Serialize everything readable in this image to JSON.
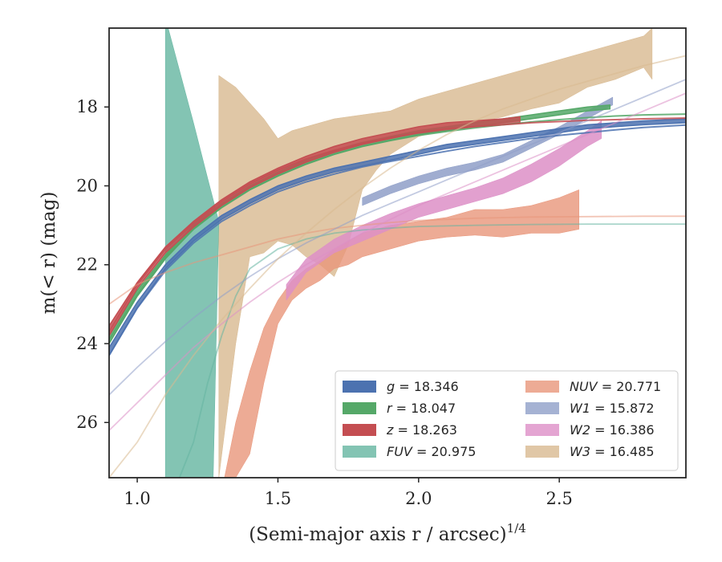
{
  "chart_data": {
    "type": "line",
    "xlabel": "(Semi-major axis r / arcsec)",
    "xlabel_sup": "1/4",
    "ylabel": "m(< r) (mag)",
    "xlim": [
      0.9,
      2.95
    ],
    "ylim": [
      27.4,
      16.0
    ],
    "y_inverted": true,
    "x_ticks": [
      1.0,
      1.5,
      2.0,
      2.5
    ],
    "x_tick_labels": [
      "1.0",
      "1.5",
      "2.0",
      "2.5"
    ],
    "y_ticks": [
      18,
      20,
      22,
      24,
      26
    ],
    "y_tick_labels": [
      "18",
      "20",
      "22",
      "24",
      "26"
    ],
    "grid": false,
    "legend_position": "lower-right",
    "legend_columns": 2,
    "series": [
      {
        "name": "g = 18.346",
        "color": "#4c72b0",
        "profile_x": [
          0.9,
          1.0,
          1.1,
          1.2,
          1.3,
          1.4,
          1.5,
          1.6,
          1.7,
          1.8,
          1.9,
          2.0,
          2.1,
          2.2,
          2.3,
          2.4,
          2.5,
          2.6,
          2.7,
          2.8,
          2.95
        ],
        "profile_lo": [
          24.3,
          23.1,
          22.1,
          21.4,
          20.85,
          20.45,
          20.1,
          19.85,
          19.65,
          19.5,
          19.35,
          19.2,
          19.05,
          18.95,
          18.85,
          18.75,
          18.65,
          18.55,
          18.5,
          18.45,
          18.4
        ],
        "profile_hi": [
          24.1,
          22.95,
          22.0,
          21.3,
          20.75,
          20.35,
          20.0,
          19.75,
          19.55,
          19.4,
          19.25,
          19.1,
          18.95,
          18.85,
          18.75,
          18.65,
          18.55,
          18.45,
          18.4,
          18.35,
          18.3
        ],
        "model_x": [
          0.9,
          1.0,
          1.1,
          1.2,
          1.3,
          1.4,
          1.5,
          1.6,
          1.7,
          1.8,
          1.9,
          2.0,
          2.1,
          2.2,
          2.3,
          2.4,
          2.5,
          2.6,
          2.7,
          2.8,
          2.95
        ],
        "model_y": [
          24.3,
          23.1,
          22.15,
          21.45,
          20.9,
          20.5,
          20.15,
          19.9,
          19.7,
          19.52,
          19.38,
          19.25,
          19.12,
          19.0,
          18.9,
          18.8,
          18.72,
          18.65,
          18.58,
          18.52,
          18.46
        ]
      },
      {
        "name": "r = 18.047",
        "color": "#55a868",
        "profile_x": [
          0.9,
          1.0,
          1.1,
          1.2,
          1.3,
          1.4,
          1.5,
          1.6,
          1.7,
          1.8,
          1.9,
          2.0,
          2.1,
          2.2,
          2.3,
          2.4,
          2.5,
          2.6,
          2.68
        ],
        "profile_lo": [
          24.0,
          22.8,
          21.85,
          21.1,
          20.55,
          20.1,
          19.75,
          19.45,
          19.2,
          19.0,
          18.85,
          18.7,
          18.6,
          18.5,
          18.4,
          18.3,
          18.2,
          18.1,
          18.05
        ],
        "profile_hi": [
          23.8,
          22.65,
          21.75,
          21.0,
          20.45,
          20.0,
          19.65,
          19.35,
          19.1,
          18.9,
          18.75,
          18.6,
          18.5,
          18.4,
          18.3,
          18.2,
          18.1,
          18.0,
          17.95
        ],
        "model_x": [
          0.9,
          1.0,
          1.1,
          1.2,
          1.3,
          1.4,
          1.5,
          1.6,
          1.7,
          1.8,
          1.9,
          2.0,
          2.1,
          2.2,
          2.3,
          2.4,
          2.5,
          2.6,
          2.7,
          2.8,
          2.95
        ],
        "model_y": [
          23.9,
          22.75,
          21.8,
          21.1,
          20.55,
          20.1,
          19.75,
          19.45,
          19.2,
          19.0,
          18.85,
          18.72,
          18.62,
          18.53,
          18.45,
          18.38,
          18.32,
          18.27,
          18.23,
          18.2,
          18.18
        ]
      },
      {
        "name": "z = 18.263",
        "color": "#c44e52",
        "profile_x": [
          0.9,
          1.0,
          1.1,
          1.2,
          1.3,
          1.4,
          1.5,
          1.6,
          1.7,
          1.8,
          1.9,
          2.0,
          2.1,
          2.2,
          2.3,
          2.36
        ],
        "profile_lo": [
          23.8,
          22.6,
          21.7,
          21.05,
          20.5,
          20.05,
          19.7,
          19.4,
          19.15,
          18.95,
          18.8,
          18.65,
          18.55,
          18.5,
          18.45,
          18.4
        ],
        "profile_hi": [
          23.55,
          22.45,
          21.55,
          20.9,
          20.35,
          19.9,
          19.55,
          19.25,
          19.0,
          18.8,
          18.65,
          18.5,
          18.4,
          18.35,
          18.3,
          18.25
        ],
        "model_x": [
          0.9,
          1.0,
          1.1,
          1.2,
          1.3,
          1.4,
          1.5,
          1.6,
          1.7,
          1.8,
          1.9,
          2.0,
          2.1,
          2.2,
          2.3,
          2.4,
          2.5,
          2.6,
          2.7,
          2.8,
          2.95
        ],
        "model_y": [
          23.7,
          22.5,
          21.6,
          20.95,
          20.4,
          19.95,
          19.6,
          19.32,
          19.1,
          18.92,
          18.78,
          18.66,
          18.57,
          18.5,
          18.45,
          18.4,
          18.37,
          18.34,
          18.32,
          18.3,
          18.28
        ]
      },
      {
        "name": "FUV = 20.975",
        "color": "#64b5a0",
        "profile_x": [
          1.1,
          1.11,
          1.2,
          1.25,
          1.29,
          1.27,
          1.23,
          1.1
        ],
        "profile_lo": [
          16.0,
          16.0,
          18.4,
          19.8,
          20.9,
          27.4,
          27.4,
          27.4
        ],
        "profile_hi": null,
        "polygon": true,
        "model_x": [
          1.15,
          1.2,
          1.25,
          1.3,
          1.35,
          1.4,
          1.5,
          1.6,
          1.7,
          1.8,
          1.9,
          2.0,
          2.2,
          2.4,
          2.6,
          2.8,
          2.95
        ],
        "model_y": [
          27.4,
          26.5,
          25.0,
          23.8,
          22.8,
          22.1,
          21.6,
          21.35,
          21.2,
          21.12,
          21.07,
          21.03,
          21.0,
          20.98,
          20.97,
          20.97,
          20.97
        ]
      },
      {
        "name": "NUV = 20.771",
        "color": "#e8967a",
        "profile_x": [
          1.31,
          1.35,
          1.4,
          1.45,
          1.5,
          1.55,
          1.6,
          1.65,
          1.7,
          1.75,
          1.8,
          1.9,
          2.0,
          2.1,
          2.2,
          2.3,
          2.4,
          2.5,
          2.57
        ],
        "profile_lo": [
          27.4,
          27.4,
          26.8,
          25.0,
          23.5,
          22.9,
          22.6,
          22.4,
          22.1,
          22.0,
          21.8,
          21.6,
          21.4,
          21.3,
          21.25,
          21.3,
          21.2,
          21.2,
          21.1
        ],
        "profile_hi": [
          27.4,
          26.0,
          24.7,
          23.6,
          22.9,
          22.4,
          22.1,
          21.9,
          21.6,
          21.4,
          21.2,
          21.0,
          20.9,
          20.8,
          20.6,
          20.6,
          20.5,
          20.3,
          20.1
        ],
        "model_x": [
          0.9,
          1.0,
          1.1,
          1.2,
          1.3,
          1.4,
          1.5,
          1.6,
          1.7,
          1.8,
          1.9,
          2.0,
          2.2,
          2.4,
          2.6,
          2.8,
          2.95
        ],
        "model_y": [
          23.0,
          22.5,
          22.2,
          21.95,
          21.75,
          21.55,
          21.35,
          21.2,
          21.08,
          21.0,
          20.93,
          20.88,
          20.82,
          20.79,
          20.78,
          20.77,
          20.77
        ]
      },
      {
        "name": "W1 = 15.872",
        "color": "#8f9fc8",
        "profile_x": [
          1.8,
          1.9,
          2.0,
          2.1,
          2.2,
          2.3,
          2.4,
          2.5,
          2.6,
          2.69
        ],
        "profile_lo": [
          20.5,
          20.2,
          19.95,
          19.75,
          19.6,
          19.4,
          19.05,
          18.7,
          18.3,
          17.95
        ],
        "profile_hi": [
          20.3,
          20.0,
          19.75,
          19.55,
          19.4,
          19.2,
          18.85,
          18.5,
          18.1,
          17.75
        ],
        "model_x": [
          0.9,
          1.0,
          1.1,
          1.2,
          1.3,
          1.4,
          1.5,
          1.6,
          1.7,
          1.8,
          1.9,
          2.0,
          2.1,
          2.2,
          2.3,
          2.4,
          2.5,
          2.6,
          2.7,
          2.8,
          2.95
        ],
        "model_y": [
          25.3,
          24.6,
          23.95,
          23.35,
          22.8,
          22.3,
          21.85,
          21.45,
          21.1,
          20.75,
          20.45,
          20.15,
          19.85,
          19.55,
          19.25,
          18.95,
          18.65,
          18.35,
          18.05,
          17.75,
          17.3
        ]
      },
      {
        "name": "W2 = 16.386",
        "color": "#dd8fc7",
        "profile_x": [
          1.53,
          1.6,
          1.7,
          1.8,
          1.9,
          2.0,
          2.1,
          2.2,
          2.3,
          2.4,
          2.5,
          2.6,
          2.65
        ],
        "profile_lo": [
          22.9,
          22.2,
          21.7,
          21.4,
          21.1,
          20.8,
          20.6,
          20.4,
          20.2,
          19.9,
          19.5,
          19.0,
          18.8
        ],
        "profile_hi": [
          22.5,
          21.85,
          21.35,
          21.0,
          20.7,
          20.45,
          20.25,
          20.05,
          19.8,
          19.45,
          19.05,
          18.6,
          18.35
        ],
        "model_x": [
          0.9,
          1.0,
          1.1,
          1.2,
          1.3,
          1.4,
          1.5,
          1.6,
          1.7,
          1.8,
          1.9,
          2.0,
          2.1,
          2.2,
          2.3,
          2.4,
          2.5,
          2.6,
          2.7,
          2.8,
          2.95
        ],
        "model_y": [
          26.2,
          25.5,
          24.8,
          24.1,
          23.5,
          22.95,
          22.45,
          22.0,
          21.6,
          21.2,
          20.85,
          20.5,
          20.2,
          19.9,
          19.6,
          19.3,
          19.0,
          18.7,
          18.4,
          18.1,
          17.65
        ]
      },
      {
        "name": "W3 = 16.485",
        "color": "#d8b990",
        "profile_x": [
          1.29,
          1.35,
          1.4,
          1.45,
          1.5,
          1.55,
          1.6,
          1.65,
          1.7,
          1.75,
          1.8,
          1.85,
          1.9,
          2.0,
          2.1,
          2.2,
          2.3,
          2.4,
          2.5,
          2.6,
          2.7,
          2.8,
          2.83
        ],
        "profile_lo": [
          27.4,
          24.0,
          21.8,
          21.7,
          21.4,
          21.5,
          21.8,
          22.0,
          22.3,
          21.5,
          20.1,
          19.6,
          19.2,
          18.75,
          18.55,
          18.4,
          18.25,
          18.05,
          17.9,
          17.5,
          17.3,
          17.0,
          17.3
        ],
        "profile_hi": [
          17.2,
          17.5,
          17.9,
          18.3,
          18.8,
          18.6,
          18.5,
          18.4,
          18.3,
          18.25,
          18.2,
          18.15,
          18.1,
          17.8,
          17.6,
          17.4,
          17.2,
          17.0,
          16.8,
          16.6,
          16.4,
          16.2,
          16.0
        ],
        "model_x": [
          0.9,
          1.0,
          1.1,
          1.2,
          1.3,
          1.4,
          1.5,
          1.6,
          1.7,
          1.8,
          1.9,
          2.0,
          2.1,
          2.2,
          2.3,
          2.4,
          2.5,
          2.6,
          2.7,
          2.8,
          2.95
        ],
        "model_y": [
          27.4,
          26.5,
          25.3,
          24.3,
          23.4,
          22.6,
          21.85,
          21.2,
          20.6,
          20.05,
          19.55,
          19.1,
          18.7,
          18.35,
          18.05,
          17.8,
          17.55,
          17.35,
          17.15,
          16.95,
          16.7
        ]
      }
    ]
  }
}
